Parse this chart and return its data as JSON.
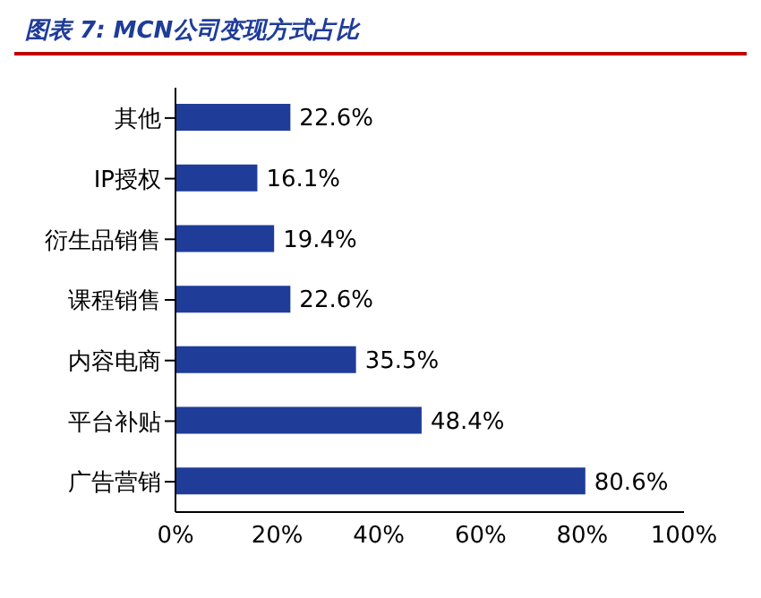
{
  "chart_data": {
    "type": "bar",
    "orientation": "horizontal",
    "title": "图表 7: MCN公司变现方式占比",
    "categories": [
      "其他",
      "IP授权",
      "衍生品销售",
      "课程销售",
      "内容电商",
      "平台补贴",
      "广告营销"
    ],
    "values": [
      22.6,
      16.1,
      19.4,
      22.6,
      35.5,
      48.4,
      80.6
    ],
    "value_labels": [
      "22.6%",
      "16.1%",
      "19.4%",
      "22.6%",
      "35.5%",
      "48.4%",
      "80.6%"
    ],
    "color": "#1f3c99",
    "xlim": [
      0,
      100
    ],
    "xticks": [
      {
        "value": 0,
        "label": "0%"
      },
      {
        "value": 20,
        "label": "20%"
      },
      {
        "value": 40,
        "label": "40%"
      },
      {
        "value": 60,
        "label": "60%"
      },
      {
        "value": 80,
        "label": "80%"
      },
      {
        "value": 100,
        "label": "100%"
      }
    ],
    "grid": false,
    "legend": false
  }
}
